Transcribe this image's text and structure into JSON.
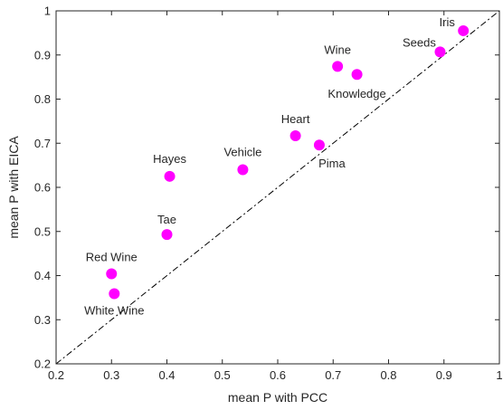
{
  "chart_data": {
    "type": "scatter",
    "xlabel": "mean P with PCC",
    "ylabel": "mean P with EICA",
    "xlim": [
      0.2,
      1
    ],
    "ylim": [
      0.2,
      1
    ],
    "x_ticks": [
      "0.2",
      "0.3",
      "0.4",
      "0.5",
      "0.6",
      "0.7",
      "0.8",
      "0.9",
      "1"
    ],
    "y_ticks": [
      "0.2",
      "0.3",
      "0.4",
      "0.5",
      "0.6",
      "0.7",
      "0.8",
      "0.9",
      "1"
    ],
    "grid": false,
    "reference_line": {
      "style": "dash-dot",
      "from": [
        0.2,
        0.2
      ],
      "to": [
        1,
        1
      ]
    },
    "marker_color": "#ff00ff",
    "points": [
      {
        "label": "Iris",
        "x": 0.935,
        "y": 0.955
      },
      {
        "label": "Seeds",
        "x": 0.893,
        "y": 0.907
      },
      {
        "label": "Wine",
        "x": 0.708,
        "y": 0.874
      },
      {
        "label": "Knowledge",
        "x": 0.743,
        "y": 0.856
      },
      {
        "label": "Heart",
        "x": 0.632,
        "y": 0.717
      },
      {
        "label": "Pima",
        "x": 0.675,
        "y": 0.696
      },
      {
        "label": "Vehicle",
        "x": 0.537,
        "y": 0.64
      },
      {
        "label": "Hayes",
        "x": 0.405,
        "y": 0.625
      },
      {
        "label": "Tae",
        "x": 0.4,
        "y": 0.493
      },
      {
        "label": "Red Wine",
        "x": 0.3,
        "y": 0.404
      },
      {
        "label": "White Wine",
        "x": 0.305,
        "y": 0.359
      }
    ]
  }
}
